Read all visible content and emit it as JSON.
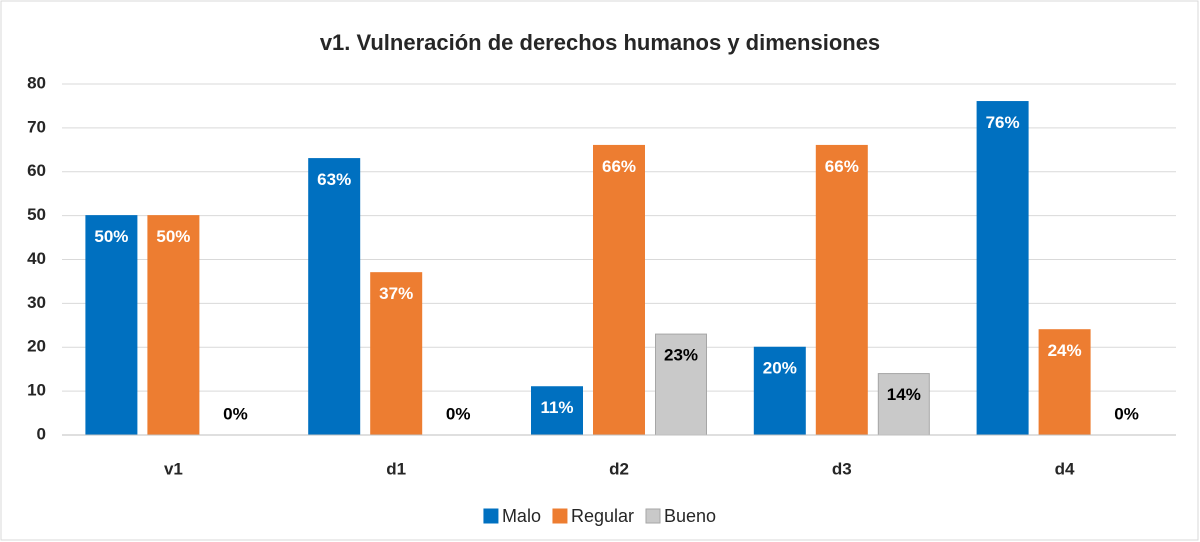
{
  "chart_data": {
    "type": "bar",
    "title": "v1. Vulneración  de derechos humanos y dimensiones",
    "categories": [
      "v1",
      "d1",
      "d2",
      "d3",
      "d4"
    ],
    "series": [
      {
        "name": "Malo",
        "color": "#0070c0",
        "label_color": "#ffffff",
        "values": [
          50,
          63,
          11,
          20,
          76
        ],
        "value_labels": [
          "50%",
          "63%",
          "11%",
          "20%",
          "76%"
        ]
      },
      {
        "name": "Regular",
        "color": "#ed7d31",
        "label_color": "#ffffff",
        "values": [
          50,
          37,
          66,
          66,
          24
        ],
        "value_labels": [
          "50%",
          "37%",
          "66%",
          "66%",
          "24%"
        ]
      },
      {
        "name": "Bueno",
        "color": "#c9c9c9",
        "label_color": "#000000",
        "values": [
          0,
          0,
          23,
          14,
          0
        ],
        "value_labels": [
          "0%",
          "0%",
          "23%",
          "14%",
          "0%"
        ]
      }
    ],
    "ylim": [
      0,
      80
    ],
    "yticks": [
      0,
      10,
      20,
      30,
      40,
      50,
      60,
      70,
      80
    ],
    "grid": true,
    "legend": "bottom"
  }
}
